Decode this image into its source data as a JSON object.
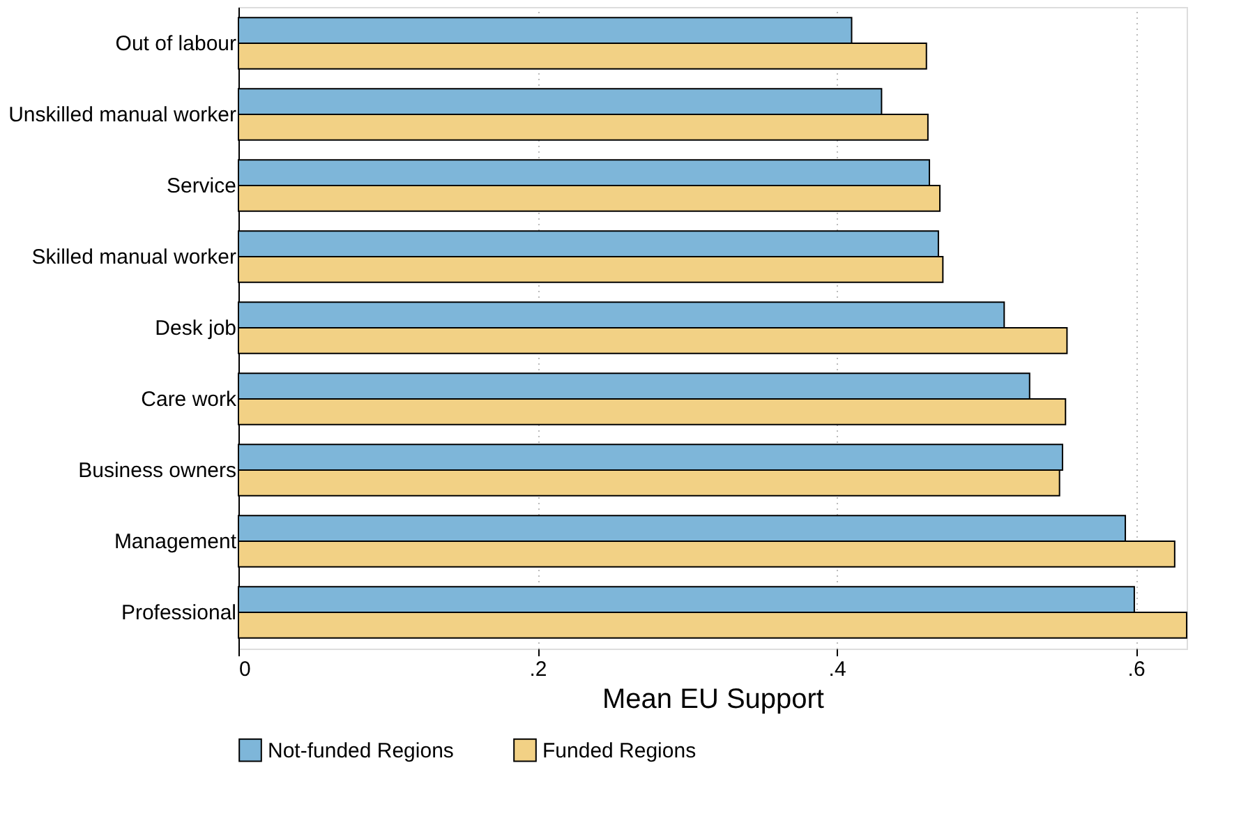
{
  "chart_data": {
    "type": "bar",
    "orientation": "horizontal",
    "xlabel": "Mean EU Support",
    "categories": [
      "Out of labour",
      "Unskilled manual worker",
      "Service",
      "Skilled manual worker",
      "Desk job",
      "Care work",
      "Business owners",
      "Management",
      "Professional"
    ],
    "series": [
      {
        "name": "Not-funded Regions",
        "color": "#7eb6d9",
        "values": [
          0.41,
          0.43,
          0.462,
          0.468,
          0.512,
          0.529,
          0.551,
          0.593,
          0.599
        ]
      },
      {
        "name": "Funded Regions",
        "color": "#f2d185",
        "values": [
          0.46,
          0.461,
          0.469,
          0.471,
          0.554,
          0.553,
          0.549,
          0.626,
          0.634
        ]
      }
    ],
    "xlim": [
      0,
      0.634
    ],
    "xticks": [
      0,
      {
        "value": 0.2,
        "label": ".2"
      },
      {
        "value": 0.4,
        "label": ".4"
      },
      {
        "value": 0.6,
        "label": ".6"
      }
    ],
    "grid": "x",
    "legend": "bottom"
  }
}
